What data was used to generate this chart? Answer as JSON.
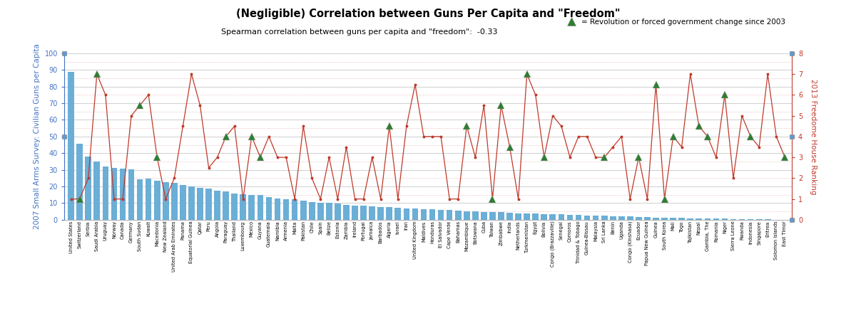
{
  "title": "(Negligible) Correlation between Guns Per Capita and \"Freedom\"",
  "subtitle": "Spearman correlation between guns per capita and \"freedom\":  -0.33",
  "ylabel_left": "2007 Small Arms Survey: Civilian Guns per Capita",
  "ylabel_right": "2013 Freedome House Ranking",
  "legend_label": "= Revolution or forced government change since 2003",
  "bar_color": "#6baed6",
  "line_color": "#c0392b",
  "triangle_color": "#2e7d32",
  "left_axis_color": "#4472c4",
  "right_axis_color": "#c0392b",
  "ylim_left": [
    0,
    100
  ],
  "ylim_right": [
    0,
    8
  ],
  "yticks_left": [
    0.0,
    10.0,
    20.0,
    30.0,
    40.0,
    50.0,
    60.0,
    70.0,
    80.0,
    90.0,
    100.0
  ],
  "yticks_right": [
    0.0,
    1.0,
    2.0,
    3.0,
    4.0,
    5.0,
    6.0,
    7.0,
    8.0
  ],
  "countries": [
    "United States",
    "Switzerland",
    "Serbia",
    "Saudi Arabia",
    "Uruguay",
    "Norway",
    "Canada",
    "Germany",
    "South Sudan",
    "Kuwait",
    "Macedonia",
    "New Zealand",
    "United Arab Emirates",
    "Panama",
    "Equatorial Guinea",
    "Qatar",
    "Peru",
    "Angola",
    "Paraguay",
    "Thailand",
    "Luxembourg",
    "Mexico",
    "Guyana",
    "Guatemala",
    "Namibia",
    "Armenia",
    "Malta",
    "Pakistan",
    "Chile",
    "Spain",
    "Belize",
    "Estonia",
    "Zambia",
    "Ireland",
    "Portugal",
    "Jamaica",
    "Barbados",
    "Algeria",
    "Israel",
    "Iran",
    "United Kingdom",
    "Maldives",
    "Honduras",
    "El Salvador",
    "Cape Verde",
    "Bahamas",
    "Mozambique",
    "Botswana",
    "Cuba",
    "Taiwan",
    "Zimbabwe",
    "India",
    "Netherlands",
    "Turkmenistan",
    "Egypt",
    "Bolivia",
    "Congo (Brazzaville)",
    "Senegal",
    "Comoros",
    "Trinidad & Tobago",
    "Guinea-Bissau",
    "Malaysia",
    "Sri Lanka",
    "Benin",
    "Uganda",
    "Congo (Kinshasa)",
    "Ecuador",
    "Papua New Guinea",
    "Guinea",
    "South Korea",
    "Mali",
    "Togo",
    "Tajikistan",
    "Nepal",
    "Gambia, The",
    "Romania",
    "Niger",
    "Sierra Leone",
    "Rwanda",
    "Indonesia",
    "Singapore",
    "Eritrea",
    "Solomon Islands",
    "East Timor"
  ],
  "guns": [
    88.8,
    45.7,
    37.8,
    35.0,
    31.8,
    31.3,
    30.8,
    30.3,
    24.3,
    24.8,
    23.3,
    22.6,
    22.3,
    21.0,
    20.2,
    19.2,
    18.8,
    17.4,
    17.0,
    15.6,
    15.3,
    15.0,
    14.7,
    13.8,
    12.9,
    12.5,
    12.5,
    11.6,
    10.7,
    10.4,
    10.0,
    9.8,
    9.1,
    8.6,
    8.6,
    8.1,
    7.8,
    7.6,
    7.3,
    6.9,
    6.7,
    6.5,
    6.2,
    6.0,
    5.8,
    5.3,
    5.0,
    4.9,
    4.8,
    4.7,
    4.6,
    4.2,
    3.9,
    3.8,
    3.6,
    3.3,
    3.3,
    3.2,
    3.1,
    3.0,
    2.7,
    2.5,
    2.3,
    2.2,
    2.0,
    1.9,
    1.7,
    1.5,
    1.4,
    1.3,
    1.2,
    1.1,
    1.0,
    0.9,
    0.8,
    0.7,
    0.6,
    0.5,
    0.4,
    0.4,
    0.3,
    0.3,
    0.1,
    0.1
  ],
  "freedom": [
    1.0,
    1.0,
    2.0,
    7.0,
    6.0,
    1.0,
    1.0,
    5.0,
    5.5,
    6.0,
    3.0,
    1.0,
    2.0,
    4.5,
    7.0,
    5.5,
    2.5,
    3.0,
    4.0,
    4.5,
    1.0,
    4.0,
    3.0,
    4.0,
    3.0,
    3.0,
    1.0,
    4.5,
    2.0,
    1.0,
    3.0,
    1.0,
    3.5,
    1.0,
    1.0,
    3.0,
    1.0,
    4.5,
    1.0,
    4.5,
    6.5,
    4.0,
    4.0,
    4.0,
    1.0,
    1.0,
    4.5,
    3.0,
    5.5,
    1.0,
    5.5,
    3.5,
    1.0,
    7.0,
    6.0,
    3.0,
    5.0,
    4.5,
    3.0,
    4.0,
    4.0,
    3.0,
    3.0,
    3.5,
    4.0,
    1.0,
    3.0,
    1.0,
    6.5,
    1.0,
    4.0,
    3.5,
    7.0,
    4.5,
    4.0,
    3.0,
    6.0,
    2.0,
    5.0,
    4.0,
    3.5,
    7.0,
    4.0,
    3.0
  ],
  "revolution_indices": [
    1,
    3,
    8,
    10,
    18,
    21,
    22,
    37,
    46,
    49,
    50,
    51,
    53,
    55,
    62,
    66,
    68,
    69,
    70,
    73,
    74,
    76,
    79,
    83
  ],
  "bg_color": "#ffffff",
  "grid_color": "#c8c8c8",
  "dotted_grid_color": "#e0a0a0"
}
